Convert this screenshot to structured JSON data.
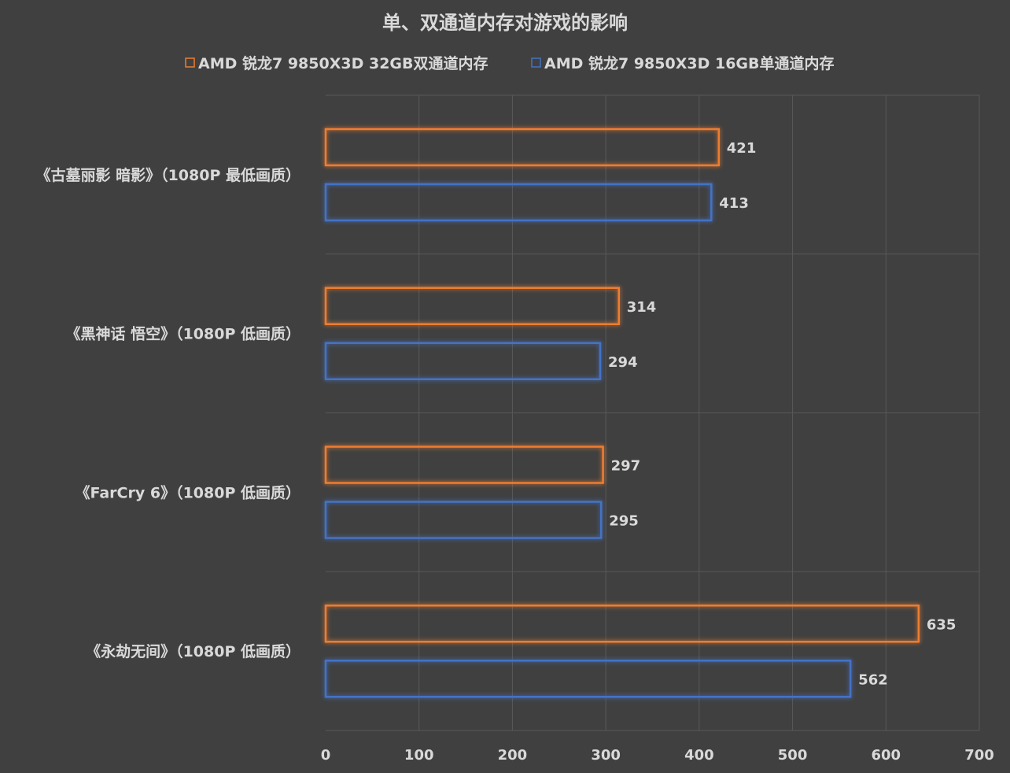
{
  "chart_data": {
    "type": "bar",
    "orientation": "horizontal",
    "title": "单、双通道内存对游戏的影响",
    "categories": [
      "《古墓丽影 暗影》（1080P 最低画质）",
      "《黑神话 悟空》（1080P 低画质）",
      "《FarCry 6》（1080P 低画质）",
      "《永劫无间》（1080P 低画质）"
    ],
    "series": [
      {
        "name": "AMD 锐龙7 9850X3D 32GB双通道内存",
        "color": "#ED7D31",
        "values": [
          421,
          314,
          297,
          635
        ]
      },
      {
        "name": "AMD 锐龙7 9850X3D 16GB单通道内存",
        "color": "#4472C4",
        "values": [
          413,
          294,
          295,
          562
        ]
      }
    ],
    "xlim": [
      0,
      700
    ],
    "xticks": [
      "0",
      "100",
      "200",
      "300",
      "400",
      "500",
      "600",
      "700"
    ],
    "grid": true,
    "legend_position": "top",
    "data_labels": true,
    "bar_style": "outlined-glow"
  },
  "colors": {
    "background": "#404040",
    "text": "#D9D9D9",
    "grid": "#595959"
  }
}
